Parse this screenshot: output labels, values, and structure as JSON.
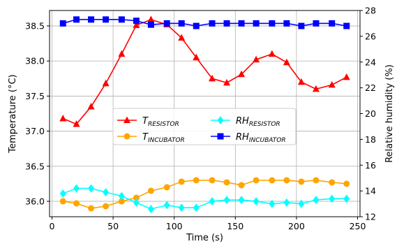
{
  "chart_data": {
    "type": "line",
    "xlabel": "Time (s)",
    "ylabel_left": "Temperature (°C)",
    "ylabel_right": "Relative humidity (%)",
    "xlim": [
      -2,
      252
    ],
    "ylim_left": [
      35.78,
      38.72
    ],
    "ylim_right": [
      12.0,
      28.0
    ],
    "xticks": [
      0,
      50,
      100,
      150,
      200,
      250
    ],
    "yticks_left": [
      36.0,
      36.5,
      37.0,
      37.5,
      38.0,
      38.5
    ],
    "yticks_right": [
      12,
      14,
      16,
      18,
      20,
      22,
      24,
      26,
      28
    ],
    "grid": true,
    "legend_placement": "center",
    "series": [
      {
        "name_main": "T",
        "name_sub": "RESISTOR",
        "axis": "left",
        "color": "#ff0000",
        "marker": "triangle",
        "x": [
          9,
          20,
          32,
          44,
          57,
          69,
          81,
          94,
          106,
          118,
          131,
          143,
          155,
          167,
          180,
          192,
          204,
          216,
          229,
          241
        ],
        "y": [
          37.18,
          37.1,
          37.35,
          37.68,
          38.1,
          38.51,
          38.59,
          38.52,
          38.33,
          38.05,
          37.75,
          37.69,
          37.81,
          38.02,
          38.1,
          37.98,
          37.7,
          37.6,
          37.66,
          37.77
        ]
      },
      {
        "name_main": "T",
        "name_sub": "INCUBATOR",
        "axis": "left",
        "color": "#ffa500",
        "marker": "circle",
        "x": [
          9,
          20,
          32,
          44,
          57,
          69,
          81,
          94,
          106,
          118,
          131,
          143,
          155,
          167,
          180,
          192,
          204,
          216,
          229,
          241
        ],
        "y": [
          36.0,
          35.97,
          35.9,
          35.93,
          36.0,
          36.05,
          36.15,
          36.2,
          36.28,
          36.3,
          36.3,
          36.27,
          36.23,
          36.3,
          36.3,
          36.3,
          36.28,
          36.3,
          36.27,
          36.25
        ]
      },
      {
        "name_main": "RH",
        "name_sub": "RESISTOR",
        "axis": "right",
        "color": "#00ffff",
        "marker": "diamond",
        "x": [
          9,
          20,
          32,
          44,
          57,
          69,
          81,
          94,
          106,
          118,
          131,
          143,
          155,
          167,
          180,
          192,
          204,
          216,
          229,
          241
        ],
        "y": [
          13.8,
          14.2,
          14.2,
          13.9,
          13.6,
          13.1,
          12.6,
          12.9,
          12.7,
          12.7,
          13.2,
          13.3,
          13.3,
          13.2,
          13.0,
          13.1,
          13.0,
          13.3,
          13.4,
          13.4
        ]
      },
      {
        "name_main": "RH",
        "name_sub": "INCUBATOR",
        "axis": "right",
        "color": "#0000ff",
        "marker": "square",
        "x": [
          9,
          20,
          32,
          44,
          57,
          69,
          81,
          94,
          106,
          118,
          131,
          143,
          155,
          167,
          180,
          192,
          204,
          216,
          229,
          241
        ],
        "y": [
          27.0,
          27.3,
          27.3,
          27.3,
          27.3,
          27.2,
          26.9,
          27.0,
          27.0,
          26.8,
          27.0,
          27.0,
          27.0,
          27.0,
          27.0,
          27.0,
          26.8,
          27.0,
          27.0,
          26.8
        ]
      }
    ]
  }
}
